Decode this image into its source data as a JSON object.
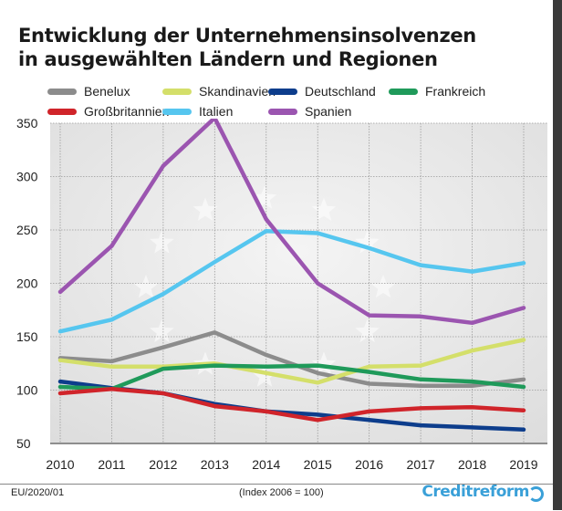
{
  "title_lines": [
    "Entwicklung der Unternehmensinsolvenzen",
    "in ausgewählten Ländern und Regionen"
  ],
  "footer": {
    "left": "EU/2020/01",
    "note": "(Index 2006 = 100)",
    "brand": "Creditreform"
  },
  "chart_data": {
    "type": "line",
    "x": [
      "2010",
      "2011",
      "2012",
      "2013",
      "2014",
      "2015",
      "2016",
      "2017",
      "2018",
      "2019"
    ],
    "ylim": [
      50,
      350
    ],
    "yticks": [
      50,
      100,
      150,
      200,
      250,
      300,
      350
    ],
    "grid": true,
    "legend_position": "top",
    "series": [
      {
        "name": "Benelux",
        "color": "#8c8c8c",
        "values": [
          130,
          127,
          140,
          154,
          133,
          116,
          106,
          104,
          104,
          110
        ]
      },
      {
        "name": "Skandinavien",
        "color": "#d4df6a",
        "values": [
          128,
          122,
          122,
          125,
          116,
          107,
          122,
          123,
          137,
          147
        ]
      },
      {
        "name": "Deutschland",
        "color": "#0d3d8c",
        "values": [
          108,
          102,
          97,
          87,
          80,
          77,
          72,
          67,
          65,
          63
        ]
      },
      {
        "name": "Frankreich",
        "color": "#1f9a5a",
        "values": [
          103,
          101,
          120,
          123,
          122,
          123,
          117,
          110,
          108,
          103
        ]
      },
      {
        "name": "Großbritannien",
        "color": "#d0242a",
        "values": [
          97,
          101,
          97,
          85,
          80,
          72,
          80,
          83,
          84,
          81
        ]
      },
      {
        "name": "Italien",
        "color": "#56c6ef",
        "values": [
          155,
          166,
          190,
          220,
          249,
          247,
          233,
          217,
          211,
          219
        ]
      },
      {
        "name": "Spanien",
        "color": "#9b55b0",
        "values": [
          192,
          235,
          310,
          355,
          260,
          200,
          170,
          169,
          163,
          177
        ]
      }
    ]
  }
}
